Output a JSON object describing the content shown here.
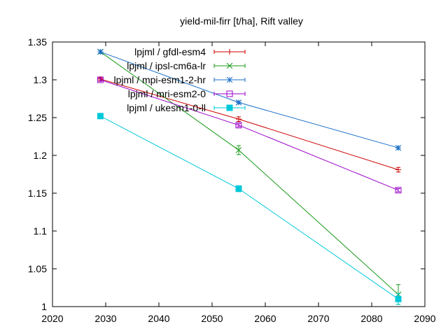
{
  "chart_data": {
    "type": "line",
    "title": "yield-mil-firr [t/ha], Rift valley",
    "xlabel": "",
    "ylabel": "",
    "xlim": [
      2020,
      2090
    ],
    "ylim": [
      1.0,
      1.35
    ],
    "x_ticks": [
      2020,
      2030,
      2040,
      2050,
      2060,
      2070,
      2080,
      2090
    ],
    "y_ticks": [
      1.0,
      1.05,
      1.1,
      1.15,
      1.2,
      1.25,
      1.3,
      1.35
    ],
    "x_tick_labels": [
      "2020",
      "2030",
      "2040",
      "2050",
      "2060",
      "2070",
      "2080",
      "2090"
    ],
    "y_tick_labels": [
      "1",
      "1.05",
      "1.1",
      "1.15",
      "1.2",
      "1.25",
      "1.3",
      "1.35"
    ],
    "grid": false,
    "legend_position": "top-right",
    "series": [
      {
        "name": "lpjml / gfdl-esm4",
        "color": "#cc0000",
        "marker": "plus",
        "x": [
          2029,
          2055,
          2085
        ],
        "y": [
          1.301,
          1.248,
          1.181
        ],
        "err": [
          0.002,
          0.003,
          0.003
        ]
      },
      {
        "name": "lpjml / ipsl-cm6a-lr",
        "color": "#1a9a1a",
        "marker": "cross",
        "x": [
          2029,
          2055,
          2085
        ],
        "y": [
          1.337,
          1.207,
          1.016
        ],
        "err": [
          0.002,
          0.006,
          0.013
        ]
      },
      {
        "name": "lpjml / mpi-esm1-2-hr",
        "color": "#1a70c8",
        "marker": "star",
        "x": [
          2029,
          2055,
          2085
        ],
        "y": [
          1.337,
          1.27,
          1.21
        ],
        "err": [
          0.002,
          0.002,
          0.002
        ]
      },
      {
        "name": "lpjml / mri-esm2-0",
        "color": "#9a00c8",
        "marker": "square-open",
        "x": [
          2029,
          2055,
          2085
        ],
        "y": [
          1.3,
          1.24,
          1.154
        ],
        "err": [
          0.002,
          0.002,
          0.002
        ]
      },
      {
        "name": "lpjml / ukesm1-0-ll",
        "color": "#00c8d8",
        "marker": "square-filled",
        "x": [
          2029,
          2055,
          2085
        ],
        "y": [
          1.252,
          1.156,
          1.01
        ],
        "err": [
          0.002,
          0.004,
          0.007
        ]
      }
    ]
  }
}
